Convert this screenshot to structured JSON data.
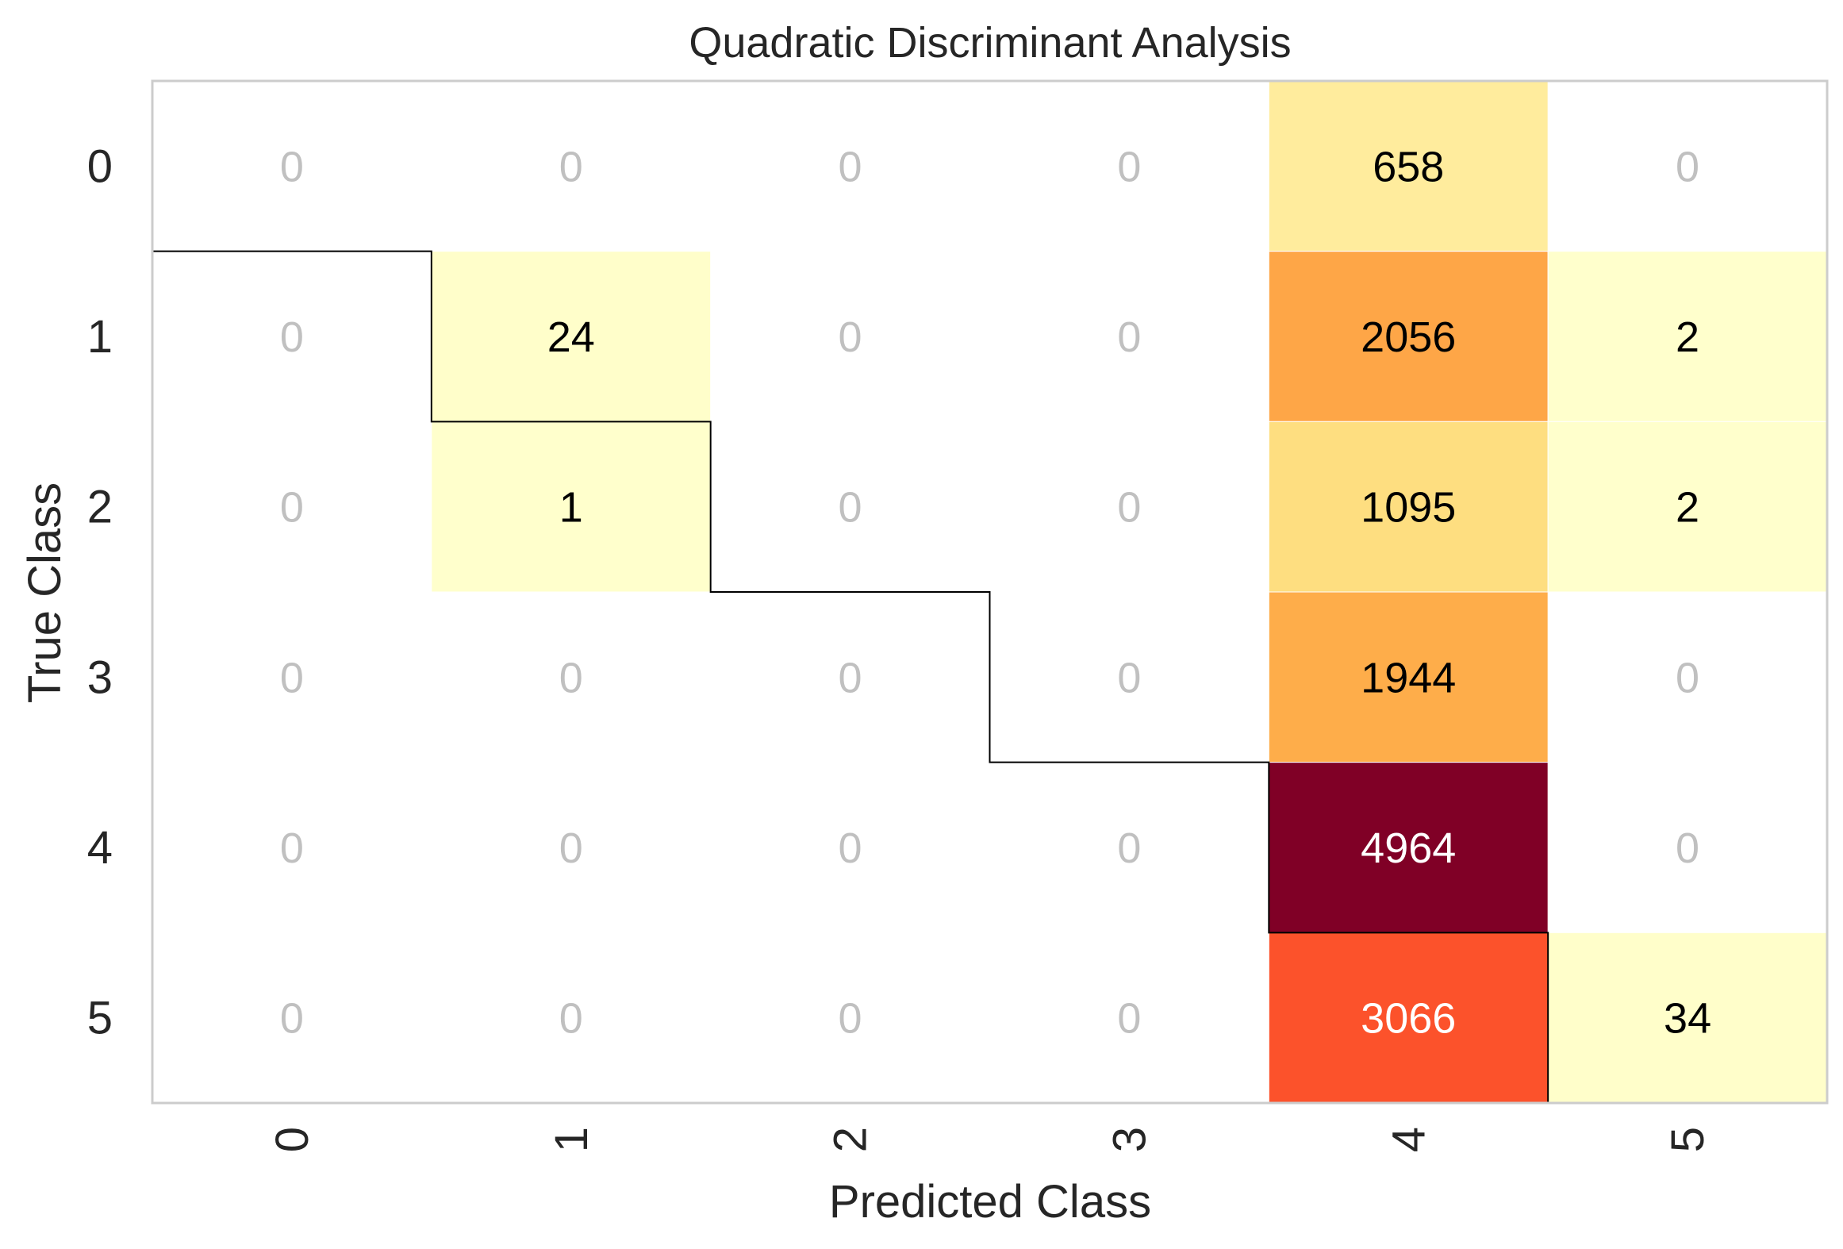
{
  "chart_data": {
    "type": "heatmap",
    "title": "Quadratic Discriminant Analysis",
    "xlabel": "Predicted Class",
    "ylabel": "True Class",
    "x_categories": [
      "0",
      "1",
      "2",
      "3",
      "4",
      "5"
    ],
    "y_categories": [
      "0",
      "1",
      "2",
      "3",
      "4",
      "5"
    ],
    "matrix": [
      [
        0,
        0,
        0,
        0,
        658,
        0
      ],
      [
        0,
        24,
        0,
        0,
        2056,
        2
      ],
      [
        0,
        1,
        0,
        0,
        1095,
        2
      ],
      [
        0,
        0,
        0,
        0,
        1944,
        0
      ],
      [
        0,
        0,
        0,
        0,
        4964,
        0
      ],
      [
        0,
        0,
        0,
        0,
        3066,
        34
      ]
    ],
    "colormap": "YlOrRd",
    "color_range": [
      0,
      4964
    ],
    "zero_cell_color": "#ffffff",
    "zero_label_color": "#c0c0c0",
    "grid": false,
    "colors": {
      "frame": "#cccccc",
      "diagonal_outline": "#000000",
      "label_dark": "#000000",
      "label_light": "#ffffff",
      "text": "#262626"
    }
  }
}
